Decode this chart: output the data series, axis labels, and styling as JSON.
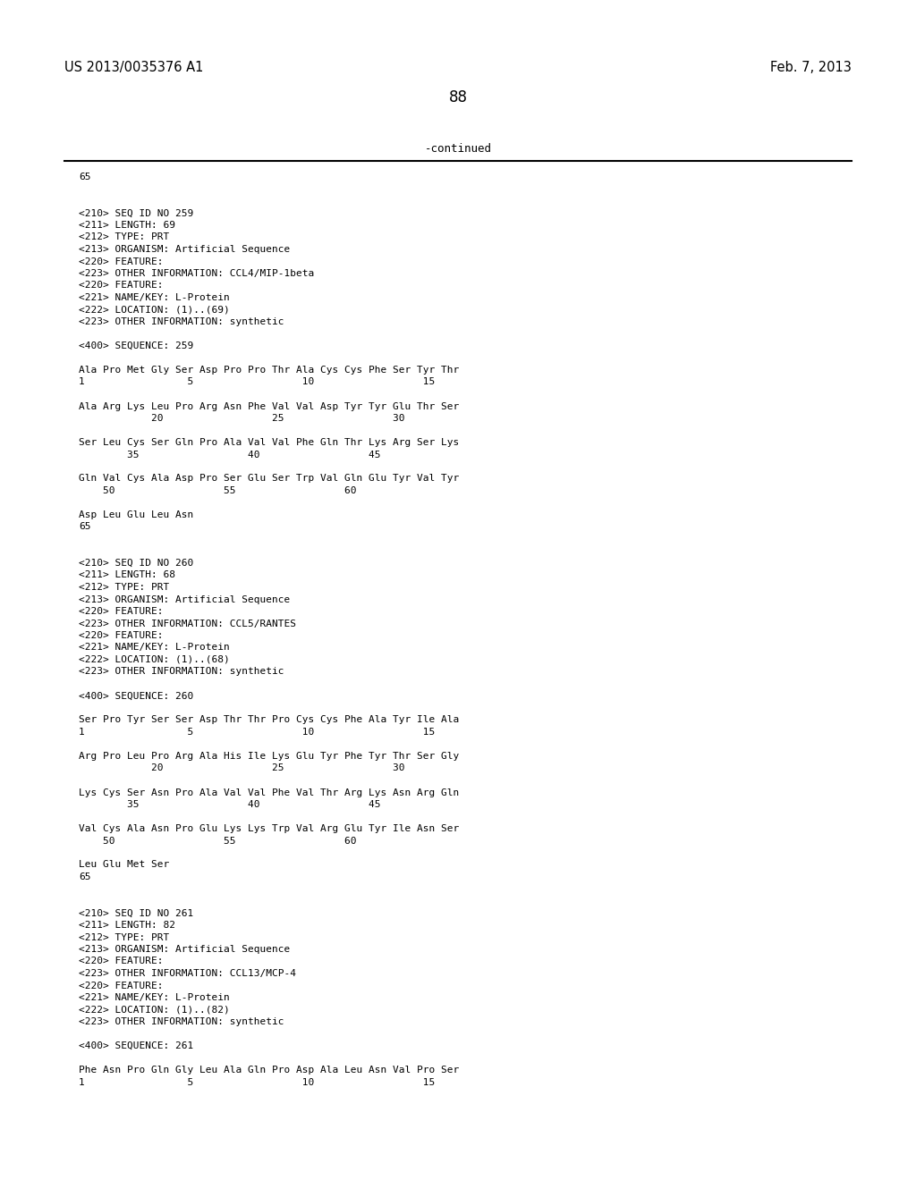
{
  "background_color": "#ffffff",
  "top_left_text": "US 2013/0035376 A1",
  "top_right_text": "Feb. 7, 2013",
  "page_number": "88",
  "continued_text": "-continued",
  "monospace_fontsize": 8.0,
  "header_fontsize": 10.5,
  "page_num_fontsize": 12,
  "content": [
    {
      "text": "65",
      "indent": 0,
      "blank_before": 0
    },
    {
      "text": "",
      "indent": 0,
      "blank_before": 1
    },
    {
      "text": "",
      "indent": 0,
      "blank_before": 0
    },
    {
      "text": "<210> SEQ ID NO 259",
      "indent": 0,
      "blank_before": 0
    },
    {
      "text": "<211> LENGTH: 69",
      "indent": 0,
      "blank_before": 0
    },
    {
      "text": "<212> TYPE: PRT",
      "indent": 0,
      "blank_before": 0
    },
    {
      "text": "<213> ORGANISM: Artificial Sequence",
      "indent": 0,
      "blank_before": 0
    },
    {
      "text": "<220> FEATURE:",
      "indent": 0,
      "blank_before": 0
    },
    {
      "text": "<223> OTHER INFORMATION: CCL4/MIP-1beta",
      "indent": 0,
      "blank_before": 0
    },
    {
      "text": "<220> FEATURE:",
      "indent": 0,
      "blank_before": 0
    },
    {
      "text": "<221> NAME/KEY: L-Protein",
      "indent": 0,
      "blank_before": 0
    },
    {
      "text": "<222> LOCATION: (1)..(69)",
      "indent": 0,
      "blank_before": 0
    },
    {
      "text": "<223> OTHER INFORMATION: synthetic",
      "indent": 0,
      "blank_before": 0
    },
    {
      "text": "",
      "indent": 0,
      "blank_before": 0
    },
    {
      "text": "<400> SEQUENCE: 259",
      "indent": 0,
      "blank_before": 0
    },
    {
      "text": "",
      "indent": 0,
      "blank_before": 0
    },
    {
      "text": "Ala Pro Met Gly Ser Asp Pro Pro Thr Ala Cys Cys Phe Ser Tyr Thr",
      "indent": 0,
      "blank_before": 0
    },
    {
      "text": "1                 5                  10                  15",
      "indent": 0,
      "blank_before": 0
    },
    {
      "text": "",
      "indent": 0,
      "blank_before": 0
    },
    {
      "text": "Ala Arg Lys Leu Pro Arg Asn Phe Val Val Asp Tyr Tyr Glu Thr Ser",
      "indent": 0,
      "blank_before": 0
    },
    {
      "text": "            20                  25                  30",
      "indent": 0,
      "blank_before": 0
    },
    {
      "text": "",
      "indent": 0,
      "blank_before": 0
    },
    {
      "text": "Ser Leu Cys Ser Gln Pro Ala Val Val Phe Gln Thr Lys Arg Ser Lys",
      "indent": 0,
      "blank_before": 0
    },
    {
      "text": "        35                  40                  45",
      "indent": 0,
      "blank_before": 0
    },
    {
      "text": "",
      "indent": 0,
      "blank_before": 0
    },
    {
      "text": "Gln Val Cys Ala Asp Pro Ser Glu Ser Trp Val Gln Glu Tyr Val Tyr",
      "indent": 0,
      "blank_before": 0
    },
    {
      "text": "    50                  55                  60",
      "indent": 0,
      "blank_before": 0
    },
    {
      "text": "",
      "indent": 0,
      "blank_before": 0
    },
    {
      "text": "Asp Leu Glu Leu Asn",
      "indent": 0,
      "blank_before": 0
    },
    {
      "text": "65",
      "indent": 0,
      "blank_before": 0
    },
    {
      "text": "",
      "indent": 0,
      "blank_before": 0
    },
    {
      "text": "",
      "indent": 0,
      "blank_before": 0
    },
    {
      "text": "<210> SEQ ID NO 260",
      "indent": 0,
      "blank_before": 0
    },
    {
      "text": "<211> LENGTH: 68",
      "indent": 0,
      "blank_before": 0
    },
    {
      "text": "<212> TYPE: PRT",
      "indent": 0,
      "blank_before": 0
    },
    {
      "text": "<213> ORGANISM: Artificial Sequence",
      "indent": 0,
      "blank_before": 0
    },
    {
      "text": "<220> FEATURE:",
      "indent": 0,
      "blank_before": 0
    },
    {
      "text": "<223> OTHER INFORMATION: CCL5/RANTES",
      "indent": 0,
      "blank_before": 0
    },
    {
      "text": "<220> FEATURE:",
      "indent": 0,
      "blank_before": 0
    },
    {
      "text": "<221> NAME/KEY: L-Protein",
      "indent": 0,
      "blank_before": 0
    },
    {
      "text": "<222> LOCATION: (1)..(68)",
      "indent": 0,
      "blank_before": 0
    },
    {
      "text": "<223> OTHER INFORMATION: synthetic",
      "indent": 0,
      "blank_before": 0
    },
    {
      "text": "",
      "indent": 0,
      "blank_before": 0
    },
    {
      "text": "<400> SEQUENCE: 260",
      "indent": 0,
      "blank_before": 0
    },
    {
      "text": "",
      "indent": 0,
      "blank_before": 0
    },
    {
      "text": "Ser Pro Tyr Ser Ser Asp Thr Thr Pro Cys Cys Phe Ala Tyr Ile Ala",
      "indent": 0,
      "blank_before": 0
    },
    {
      "text": "1                 5                  10                  15",
      "indent": 0,
      "blank_before": 0
    },
    {
      "text": "",
      "indent": 0,
      "blank_before": 0
    },
    {
      "text": "Arg Pro Leu Pro Arg Ala His Ile Lys Glu Tyr Phe Tyr Thr Ser Gly",
      "indent": 0,
      "blank_before": 0
    },
    {
      "text": "            20                  25                  30",
      "indent": 0,
      "blank_before": 0
    },
    {
      "text": "",
      "indent": 0,
      "blank_before": 0
    },
    {
      "text": "Lys Cys Ser Asn Pro Ala Val Val Phe Val Thr Arg Lys Asn Arg Gln",
      "indent": 0,
      "blank_before": 0
    },
    {
      "text": "        35                  40                  45",
      "indent": 0,
      "blank_before": 0
    },
    {
      "text": "",
      "indent": 0,
      "blank_before": 0
    },
    {
      "text": "Val Cys Ala Asn Pro Glu Lys Lys Trp Val Arg Glu Tyr Ile Asn Ser",
      "indent": 0,
      "blank_before": 0
    },
    {
      "text": "    50                  55                  60",
      "indent": 0,
      "blank_before": 0
    },
    {
      "text": "",
      "indent": 0,
      "blank_before": 0
    },
    {
      "text": "Leu Glu Met Ser",
      "indent": 0,
      "blank_before": 0
    },
    {
      "text": "65",
      "indent": 0,
      "blank_before": 0
    },
    {
      "text": "",
      "indent": 0,
      "blank_before": 0
    },
    {
      "text": "",
      "indent": 0,
      "blank_before": 0
    },
    {
      "text": "<210> SEQ ID NO 261",
      "indent": 0,
      "blank_before": 0
    },
    {
      "text": "<211> LENGTH: 82",
      "indent": 0,
      "blank_before": 0
    },
    {
      "text": "<212> TYPE: PRT",
      "indent": 0,
      "blank_before": 0
    },
    {
      "text": "<213> ORGANISM: Artificial Sequence",
      "indent": 0,
      "blank_before": 0
    },
    {
      "text": "<220> FEATURE:",
      "indent": 0,
      "blank_before": 0
    },
    {
      "text": "<223> OTHER INFORMATION: CCL13/MCP-4",
      "indent": 0,
      "blank_before": 0
    },
    {
      "text": "<220> FEATURE:",
      "indent": 0,
      "blank_before": 0
    },
    {
      "text": "<221> NAME/KEY: L-Protein",
      "indent": 0,
      "blank_before": 0
    },
    {
      "text": "<222> LOCATION: (1)..(82)",
      "indent": 0,
      "blank_before": 0
    },
    {
      "text": "<223> OTHER INFORMATION: synthetic",
      "indent": 0,
      "blank_before": 0
    },
    {
      "text": "",
      "indent": 0,
      "blank_before": 0
    },
    {
      "text": "<400> SEQUENCE: 261",
      "indent": 0,
      "blank_before": 0
    },
    {
      "text": "",
      "indent": 0,
      "blank_before": 0
    },
    {
      "text": "Phe Asn Pro Gln Gly Leu Ala Gln Pro Asp Ala Leu Asn Val Pro Ser",
      "indent": 0,
      "blank_before": 0
    },
    {
      "text": "1                 5                  10                  15",
      "indent": 0,
      "blank_before": 0
    }
  ]
}
